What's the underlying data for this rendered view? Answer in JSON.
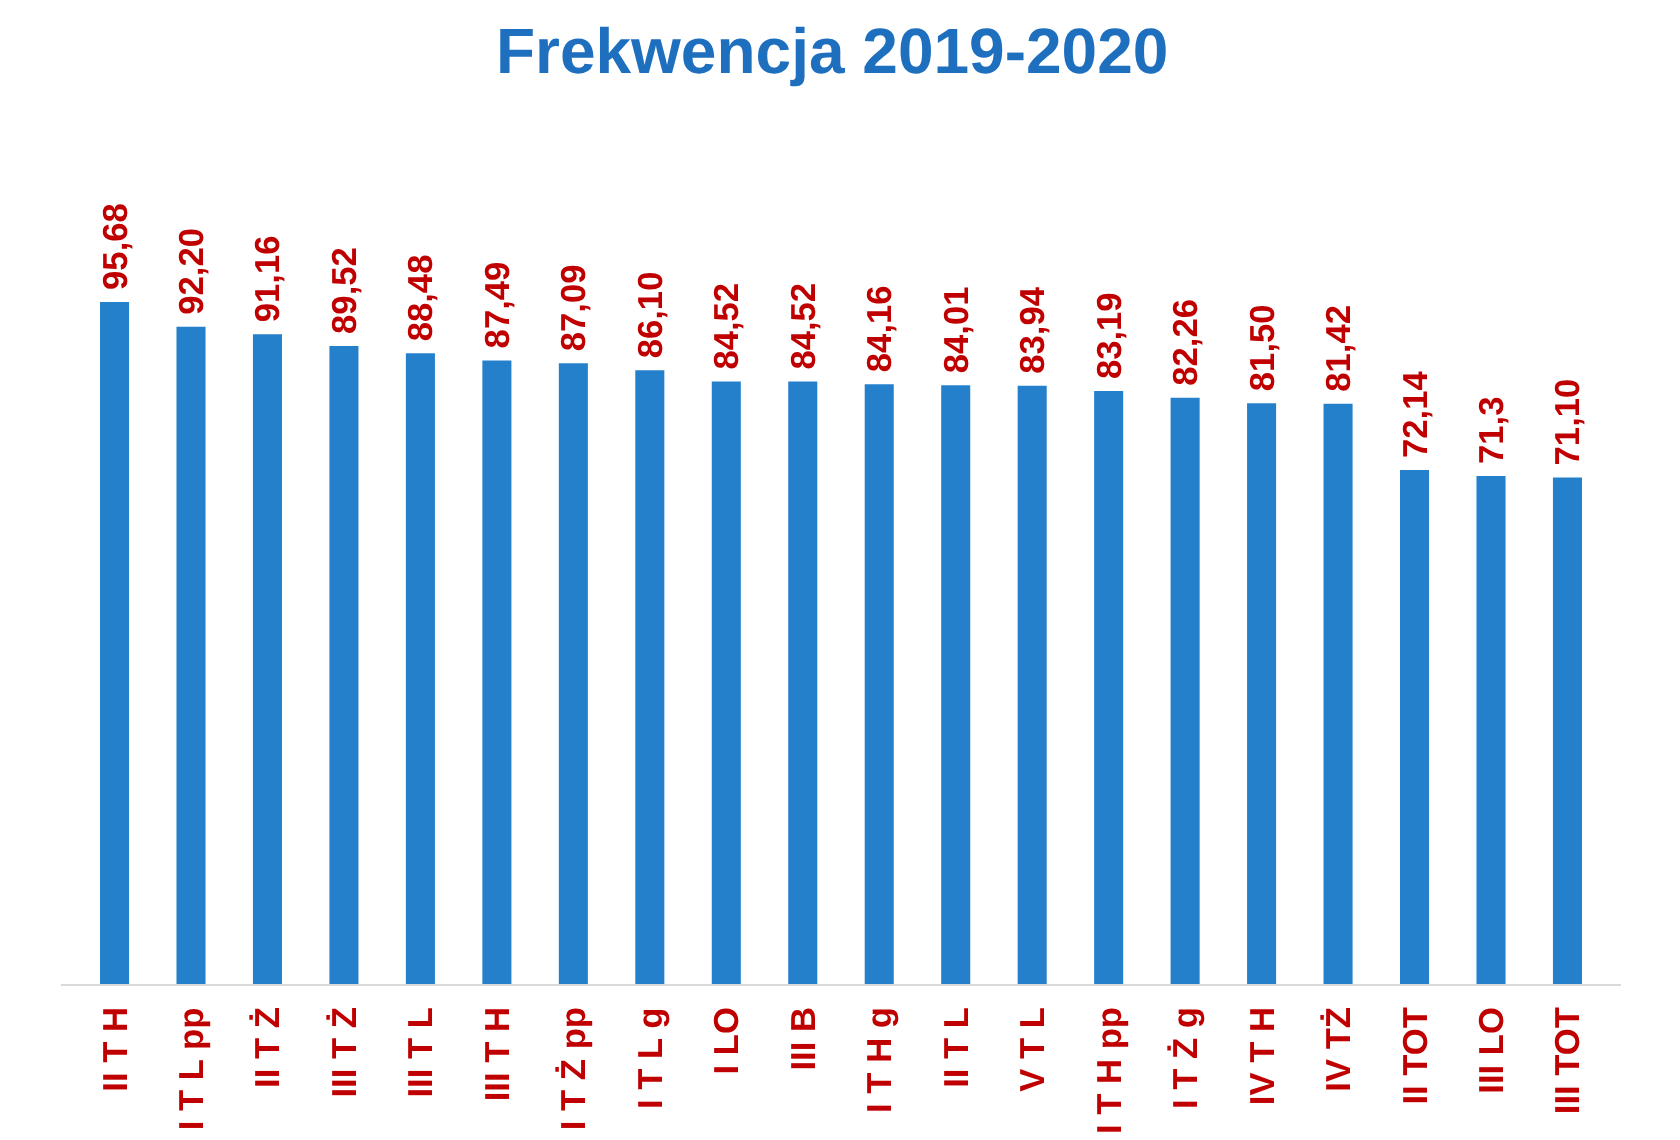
{
  "chart_data": {
    "type": "bar",
    "title": "Frekwencja  2019-2020",
    "categories": [
      "II T H",
      "I T L pp",
      "II T Ż",
      "III T Ż",
      "III T L",
      "III T H",
      "I T Ż pp",
      "I T L g",
      "I LO",
      "III B",
      "I T H g",
      "II T L",
      "V T L",
      "I T H pp",
      "I T Ż g",
      "IV T H",
      "IV TŻ",
      "II TOT",
      "III LO",
      "III TOT"
    ],
    "values": [
      95.68,
      92.2,
      91.16,
      89.52,
      88.48,
      87.49,
      87.09,
      86.1,
      84.52,
      84.52,
      84.16,
      84.01,
      83.94,
      83.19,
      82.26,
      81.5,
      81.42,
      72.14,
      71.3,
      71.1
    ],
    "value_labels": [
      "95,68",
      "92,20",
      "91,16",
      "89,52",
      "88,48",
      "87,49",
      "87,09",
      "86,10",
      "84,52",
      "84,52",
      "84,16",
      "84,01",
      "83,94",
      "83,19",
      "82,26",
      "81,50",
      "81,42",
      "72,14",
      "71,3",
      "71,10"
    ],
    "color": "#2580cc",
    "grid": false
  }
}
